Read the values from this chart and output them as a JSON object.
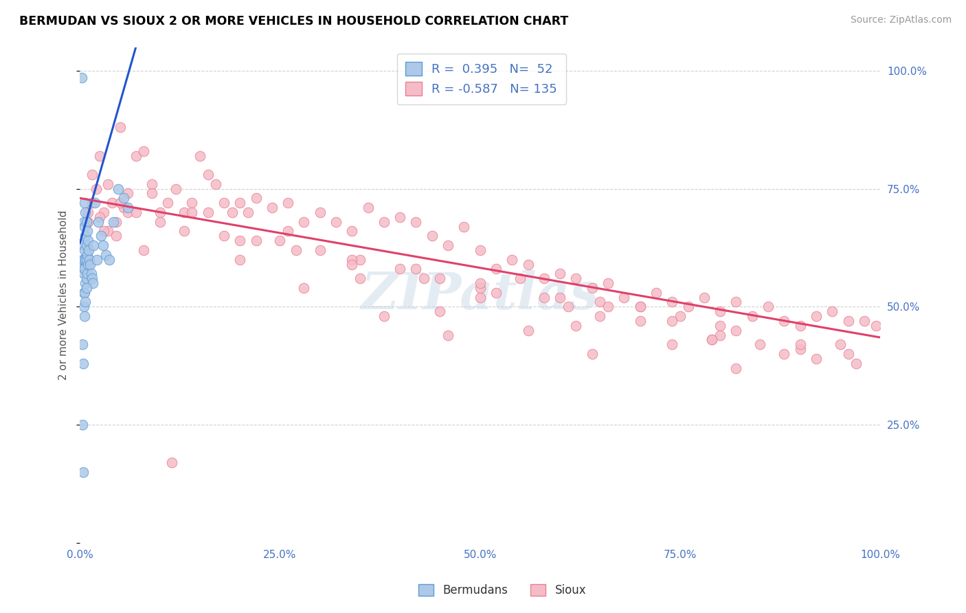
{
  "title": "BERMUDAN VS SIOUX 2 OR MORE VEHICLES IN HOUSEHOLD CORRELATION CHART",
  "source": "Source: ZipAtlas.com",
  "ylabel": "2 or more Vehicles in Household",
  "xlim": [
    0.0,
    1.0
  ],
  "ylim": [
    0.0,
    1.05
  ],
  "x_ticks": [
    0.0,
    0.25,
    0.5,
    0.75,
    1.0
  ],
  "x_tick_labels": [
    "0.0%",
    "25.0%",
    "50.0%",
    "75.0%",
    "100.0%"
  ],
  "y_ticks": [
    0.0,
    0.25,
    0.5,
    0.75,
    1.0
  ],
  "y_tick_labels": [
    "",
    "25.0%",
    "50.0%",
    "75.0%",
    "100.0%"
  ],
  "bermudans_color": "#adc8e8",
  "bermudans_edge_color": "#5b9bd5",
  "sioux_color": "#f5bcc8",
  "sioux_edge_color": "#e87f90",
  "blue_line_color": "#2255cc",
  "pink_line_color": "#e0406a",
  "watermark": "ZIPatlas",
  "legend_label_blue": "R =  0.395   N=  52",
  "legend_label_pink": "R = -0.587   N= 135",
  "blue_line_x": [
    0.0,
    0.075
  ],
  "blue_line_y": [
    0.635,
    1.08
  ],
  "pink_line_x": [
    0.0,
    1.0
  ],
  "pink_line_y": [
    0.73,
    0.435
  ],
  "bermudans_x": [
    0.002,
    0.003,
    0.003,
    0.004,
    0.004,
    0.005,
    0.005,
    0.005,
    0.005,
    0.005,
    0.006,
    0.006,
    0.006,
    0.006,
    0.006,
    0.007,
    0.007,
    0.007,
    0.007,
    0.008,
    0.008,
    0.008,
    0.008,
    0.009,
    0.009,
    0.009,
    0.01,
    0.01,
    0.011,
    0.012,
    0.013,
    0.014,
    0.015,
    0.016,
    0.017,
    0.019,
    0.021,
    0.023,
    0.026,
    0.029,
    0.032,
    0.037,
    0.042,
    0.048,
    0.055,
    0.06,
    0.005,
    0.006,
    0.007,
    0.008,
    0.003,
    0.004
  ],
  "bermudans_y": [
    0.985,
    0.6,
    0.42,
    0.58,
    0.38,
    0.68,
    0.63,
    0.6,
    0.57,
    0.53,
    0.72,
    0.67,
    0.62,
    0.58,
    0.53,
    0.7,
    0.65,
    0.6,
    0.55,
    0.68,
    0.63,
    0.6,
    0.56,
    0.66,
    0.61,
    0.57,
    0.64,
    0.59,
    0.62,
    0.6,
    0.59,
    0.57,
    0.56,
    0.55,
    0.63,
    0.72,
    0.6,
    0.68,
    0.65,
    0.63,
    0.61,
    0.6,
    0.68,
    0.75,
    0.73,
    0.71,
    0.5,
    0.48,
    0.51,
    0.54,
    0.25,
    0.15
  ],
  "sioux_x": [
    0.01,
    0.015,
    0.02,
    0.025,
    0.03,
    0.035,
    0.04,
    0.045,
    0.05,
    0.055,
    0.06,
    0.07,
    0.08,
    0.09,
    0.1,
    0.11,
    0.12,
    0.13,
    0.14,
    0.15,
    0.16,
    0.17,
    0.18,
    0.19,
    0.2,
    0.21,
    0.22,
    0.24,
    0.26,
    0.28,
    0.3,
    0.32,
    0.34,
    0.36,
    0.38,
    0.4,
    0.42,
    0.44,
    0.46,
    0.48,
    0.5,
    0.52,
    0.54,
    0.56,
    0.58,
    0.6,
    0.62,
    0.64,
    0.66,
    0.68,
    0.7,
    0.72,
    0.74,
    0.76,
    0.78,
    0.8,
    0.82,
    0.84,
    0.86,
    0.88,
    0.9,
    0.92,
    0.94,
    0.96,
    0.98,
    0.995,
    0.015,
    0.025,
    0.035,
    0.045,
    0.06,
    0.08,
    0.1,
    0.14,
    0.18,
    0.22,
    0.26,
    0.3,
    0.35,
    0.4,
    0.45,
    0.5,
    0.55,
    0.6,
    0.65,
    0.7,
    0.75,
    0.8,
    0.85,
    0.9,
    0.13,
    0.2,
    0.27,
    0.34,
    0.42,
    0.5,
    0.58,
    0.66,
    0.74,
    0.82,
    0.9,
    0.16,
    0.25,
    0.34,
    0.43,
    0.52,
    0.61,
    0.7,
    0.79,
    0.88,
    0.97,
    0.2,
    0.35,
    0.5,
    0.65,
    0.8,
    0.95,
    0.28,
    0.45,
    0.62,
    0.79,
    0.96,
    0.38,
    0.56,
    0.74,
    0.92,
    0.46,
    0.64,
    0.82,
    0.01,
    0.03,
    0.05,
    0.07,
    0.09,
    0.115
  ],
  "sioux_y": [
    0.7,
    0.78,
    0.75,
    0.82,
    0.7,
    0.76,
    0.72,
    0.68,
    0.88,
    0.71,
    0.74,
    0.82,
    0.83,
    0.76,
    0.7,
    0.72,
    0.75,
    0.7,
    0.72,
    0.82,
    0.78,
    0.76,
    0.72,
    0.7,
    0.72,
    0.7,
    0.73,
    0.71,
    0.72,
    0.68,
    0.7,
    0.68,
    0.66,
    0.71,
    0.68,
    0.69,
    0.68,
    0.65,
    0.63,
    0.67,
    0.62,
    0.58,
    0.6,
    0.59,
    0.56,
    0.57,
    0.56,
    0.54,
    0.55,
    0.52,
    0.5,
    0.53,
    0.51,
    0.5,
    0.52,
    0.49,
    0.51,
    0.48,
    0.5,
    0.47,
    0.46,
    0.48,
    0.49,
    0.47,
    0.47,
    0.46,
    0.72,
    0.69,
    0.66,
    0.65,
    0.7,
    0.62,
    0.68,
    0.7,
    0.65,
    0.64,
    0.66,
    0.62,
    0.6,
    0.58,
    0.56,
    0.54,
    0.56,
    0.52,
    0.51,
    0.5,
    0.48,
    0.46,
    0.42,
    0.41,
    0.66,
    0.64,
    0.62,
    0.6,
    0.58,
    0.55,
    0.52,
    0.5,
    0.47,
    0.45,
    0.42,
    0.7,
    0.64,
    0.59,
    0.56,
    0.53,
    0.5,
    0.47,
    0.43,
    0.4,
    0.38,
    0.6,
    0.56,
    0.52,
    0.48,
    0.44,
    0.42,
    0.54,
    0.49,
    0.46,
    0.43,
    0.4,
    0.48,
    0.45,
    0.42,
    0.39,
    0.44,
    0.4,
    0.37,
    0.68,
    0.66,
    0.72,
    0.7,
    0.74,
    0.17
  ]
}
